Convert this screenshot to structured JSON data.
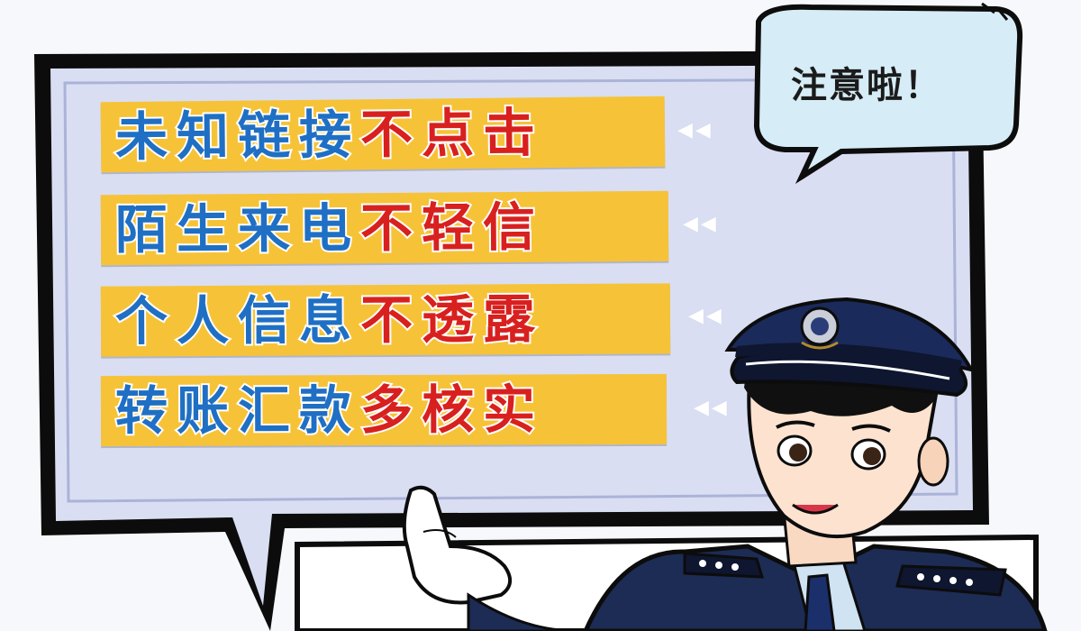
{
  "callout": {
    "text": "注意啦！"
  },
  "tips": [
    {
      "blue": "未知链接",
      "red": "不点击"
    },
    {
      "blue": "陌生来电",
      "red": "不轻信"
    },
    {
      "blue": "个人信息",
      "red": "不透露"
    },
    {
      "blue": "转账汇款",
      "red": "多核实"
    }
  ],
  "colors": {
    "board_fill": "#d9def2",
    "board_border": "#0d0d0d",
    "banner_fill": "#f6c338",
    "blue_text": "#1f6fc4",
    "red_text": "#d8201f",
    "callout_fill": "#d6ecf6",
    "uniform": "#1d2c55"
  },
  "icons": {
    "arrow": "double-left-arrow",
    "badge": "police-badge-icon",
    "character": "police-officer-illustration"
  }
}
